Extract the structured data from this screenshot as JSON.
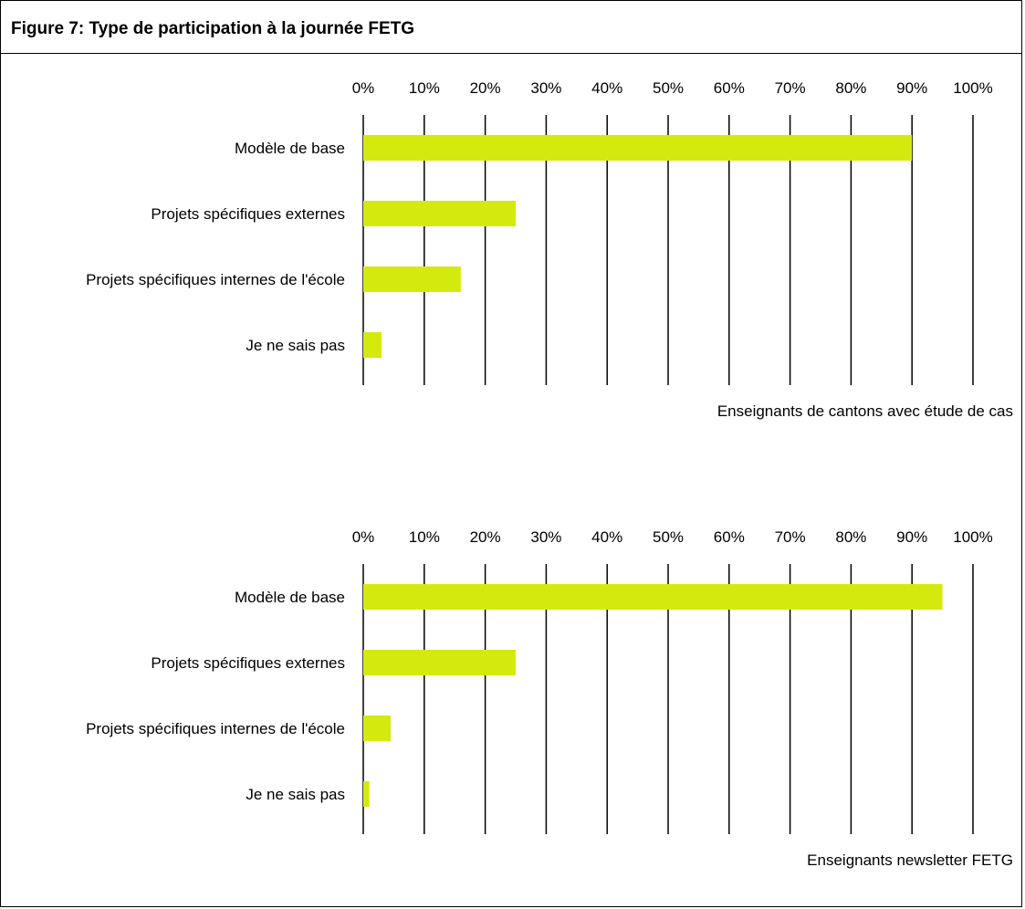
{
  "figure": {
    "title": "Figure 7: Type de participation à la journée FETG"
  },
  "colors": {
    "bar": "#d4ea0f",
    "grid": "#000000",
    "text": "#000000"
  },
  "chart_data": [
    {
      "type": "bar",
      "orientation": "horizontal",
      "categories": [
        "Modèle de base",
        "Projets spécifiques externes",
        "Projets spécifiques internes de l'école",
        "Je ne sais pas"
      ],
      "values": [
        90,
        25,
        16,
        3
      ],
      "xlim": [
        0,
        100
      ],
      "tick_values": [
        0,
        10,
        20,
        30,
        40,
        50,
        60,
        70,
        80,
        90,
        100
      ],
      "tick_labels": [
        "0%",
        "10%",
        "20%",
        "30%",
        "40%",
        "50%",
        "60%",
        "70%",
        "80%",
        "90%",
        "100%"
      ],
      "xlabel": "Enseignants de cantons avec étude de cas",
      "grid": true,
      "axis_position": "top"
    },
    {
      "type": "bar",
      "orientation": "horizontal",
      "categories": [
        "Modèle de base",
        "Projets spécifiques externes",
        "Projets spécifiques internes de l'école",
        "Je ne sais pas"
      ],
      "values": [
        95,
        25,
        4.5,
        1
      ],
      "xlim": [
        0,
        100
      ],
      "tick_values": [
        0,
        10,
        20,
        30,
        40,
        50,
        60,
        70,
        80,
        90,
        100
      ],
      "tick_labels": [
        "0%",
        "10%",
        "20%",
        "30%",
        "40%",
        "50%",
        "60%",
        "70%",
        "80%",
        "90%",
        "100%"
      ],
      "xlabel": "Enseignants newsletter FETG",
      "grid": true,
      "axis_position": "top"
    }
  ]
}
